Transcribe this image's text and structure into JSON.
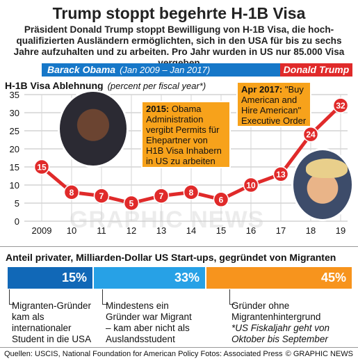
{
  "header": {
    "title": "Trump stoppt begehrte H-1B Visa",
    "subtitle": "Präsident Donald Trump stoppt Bewilligung von H-1B Visa, die hoch-qualifizierten Ausländern ermöglichten, sich in den USA für bis zu sechs Jahre aufzuhalten und zu arbeiten.  Pro Jahr wurden in US nur 85.000 Visa vergeben"
  },
  "eras": {
    "obama_name": "Barack Obama",
    "obama_period": "(Jan 2009 – Jan 2017)",
    "trump_name": "Donald Trump"
  },
  "chart_title": "H-1B Visa Ablehnung",
  "chart_subtitle": "(percent per fiscal year*)",
  "chart_data": {
    "type": "line",
    "x": [
      "2009",
      "10",
      "11",
      "12",
      "13",
      "14",
      "15",
      "16",
      "17",
      "18",
      "19"
    ],
    "values": [
      15,
      8,
      7,
      5,
      7,
      8,
      6,
      10,
      13,
      24,
      32
    ],
    "ylim": [
      0,
      35
    ],
    "yticks": [
      0,
      5,
      10,
      15,
      20,
      25,
      30,
      35
    ],
    "line_color": "#e02a2a",
    "grid": true
  },
  "callouts": {
    "c2015_year": "2015:",
    "c2015_text": "Obama Administration vergibt Permits für Ehepartner von H1B Visa Inhabern in US zu arbeiten",
    "c2017_year": "Apr 2017:",
    "c2017_text": "\"Buy American and Hire American\" Executive Order"
  },
  "watermark": "GRAPHIC NEWS",
  "startups": {
    "title": "Anteil privater, Milliarden-Dollar US Start-ups, gegründet von Migranten",
    "segments": [
      {
        "label": "15%",
        "value": 15,
        "color": "#1168b7"
      },
      {
        "label": "33%",
        "value": 33,
        "color": "#27a1e6"
      },
      {
        "label": "45%",
        "value": 45,
        "color": "#f7941d"
      }
    ],
    "notes": [
      "Migranten-Gründer kam als internationaler Student in die USA",
      "Mindestens ein Gründer war Migrant – kam aber nicht als Auslandsstudent",
      "Gründer ohne Migrantenhintergrund"
    ],
    "footnote": "*US Fiskaljahr geht von Oktober bis September"
  },
  "footer": {
    "sources": "Quellen: USCIS, National Foundation for American Policy  Fotos: Associated Press",
    "credit": "© GRAPHIC NEWS"
  }
}
